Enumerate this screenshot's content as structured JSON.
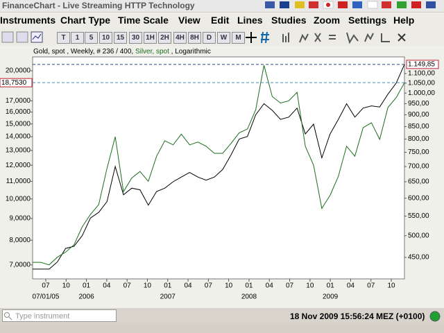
{
  "window": {
    "title": "FinanceChart - Live Streaming HTTP Technology"
  },
  "menu": [
    "Instruments",
    "Chart Type",
    "Time Scale",
    "View",
    "Edit",
    "Lines",
    "Studies",
    "Zoom",
    "Settings",
    "Help"
  ],
  "toolbar": [
    "T",
    "1",
    "5",
    "10",
    "15",
    "30",
    "1H",
    "2H",
    "4H",
    "8H",
    "D",
    "W",
    "M"
  ],
  "chart_data": {
    "type": "line",
    "subtitle": [
      "Gold, spot , Weekly, # 236 / 400, ",
      "Silver, spot",
      " , Logarithmic"
    ],
    "log_scale": true,
    "xlim": [
      2005.338,
      2009.912
    ],
    "xticks": [
      {
        "value": 2005.5,
        "label": "07"
      },
      {
        "value": 2005.75,
        "label": "10"
      },
      {
        "value": 2006.0,
        "label": "01"
      },
      {
        "value": 2006.25,
        "label": "04"
      },
      {
        "value": 2006.5,
        "label": "07"
      },
      {
        "value": 2006.75,
        "label": "10"
      },
      {
        "value": 2007.0,
        "label": "01"
      },
      {
        "value": 2007.25,
        "label": "04"
      },
      {
        "value": 2007.5,
        "label": "07"
      },
      {
        "value": 2007.75,
        "label": "10"
      },
      {
        "value": 2008.0,
        "label": "01"
      },
      {
        "value": 2008.25,
        "label": "04"
      },
      {
        "value": 2008.5,
        "label": "07"
      },
      {
        "value": 2008.75,
        "label": "10"
      },
      {
        "value": 2009.0,
        "label": "01"
      },
      {
        "value": 2009.25,
        "label": "04"
      },
      {
        "value": 2009.5,
        "label": "07"
      },
      {
        "value": 2009.75,
        "label": "10"
      }
    ],
    "xticks_year": [
      {
        "value": 2005.5,
        "label": "07/01/05"
      },
      {
        "value": 2006.0,
        "label": "2006"
      },
      {
        "value": 2007.0,
        "label": "2007"
      },
      {
        "value": 2008.0,
        "label": "2008"
      },
      {
        "value": 2009.0,
        "label": "2009"
      }
    ],
    "ylim": [
      6.49,
      21.56
    ],
    "yticks": [
      {
        "value": 7,
        "label": "7,0000"
      },
      {
        "value": 8,
        "label": "8,0000"
      },
      {
        "value": 9,
        "label": "9,0000"
      },
      {
        "value": 10,
        "label": "10,0000"
      },
      {
        "value": 11,
        "label": "11,0000"
      },
      {
        "value": 12,
        "label": "12,0000"
      },
      {
        "value": 13,
        "label": "13,0000"
      },
      {
        "value": 14,
        "label": "14,0000"
      },
      {
        "value": 15,
        "label": "15,0000"
      },
      {
        "value": 16,
        "label": "16,0000"
      },
      {
        "value": 17,
        "label": "17,0000"
      },
      {
        "value": 20,
        "label": "20,0000"
      }
    ],
    "y_last": {
      "value": 18.753,
      "label": "18,7530"
    },
    "y2lim": [
      405.3,
      1192.7
    ],
    "y2ticks": [
      {
        "value": 450,
        "label": "450,00"
      },
      {
        "value": 500,
        "label": "500,00"
      },
      {
        "value": 550,
        "label": "550,00"
      },
      {
        "value": 600,
        "label": "600,00"
      },
      {
        "value": 650,
        "label": "650,00"
      },
      {
        "value": 700,
        "label": "700,00"
      },
      {
        "value": 750,
        "label": "750,00"
      },
      {
        "value": 800,
        "label": "800,00"
      },
      {
        "value": 850,
        "label": "850,00"
      },
      {
        "value": 900,
        "label": "900,00"
      },
      {
        "value": 950,
        "label": "950,00"
      },
      {
        "value": 1000,
        "label": "1.000,00"
      },
      {
        "value": 1050,
        "label": "1.050,00"
      },
      {
        "value": 1100,
        "label": "1.100,00"
      }
    ],
    "y2_last": {
      "value": 1149.85,
      "label": "1.149,85"
    },
    "series": [
      {
        "color": "#000000",
        "axis": "y2",
        "values": [
          425,
          425,
          425,
          440,
          470,
          475,
          500,
          545,
          560,
          590,
          700,
          610,
          630,
          625,
          580,
          620,
          630,
          650,
          665,
          680,
          665,
          655,
          665,
          690,
          740,
          800,
          810,
          900,
          950,
          920,
          880,
          890,
          930,
          820,
          860,
          730,
          820,
          880,
          950,
          890,
          930,
          940,
          935,
          995,
          1050,
          1149.85
        ]
      },
      {
        "color": "#1a6e1a",
        "axis": "y",
        "values": [
          7.1,
          7.1,
          7.0,
          7.3,
          7.5,
          7.8,
          8.6,
          9.2,
          9.7,
          11.8,
          14.0,
          10.4,
          11.2,
          11.6,
          11.0,
          12.6,
          13.7,
          13.4,
          14.2,
          13.4,
          13.6,
          13.3,
          12.8,
          12.8,
          13.5,
          14.3,
          14.6,
          16.2,
          20.6,
          17.4,
          16.8,
          17.0,
          17.8,
          13.3,
          12.0,
          9.5,
          10.2,
          11.3,
          13.3,
          12.6,
          14.7,
          15.1,
          13.8,
          16.4,
          17.3,
          18.753
        ]
      }
    ]
  },
  "status": {
    "placeholder": "Type instrument",
    "datetime": "18 Nov 2009 15:56:24",
    "timezone": "MEZ (+0100)"
  }
}
